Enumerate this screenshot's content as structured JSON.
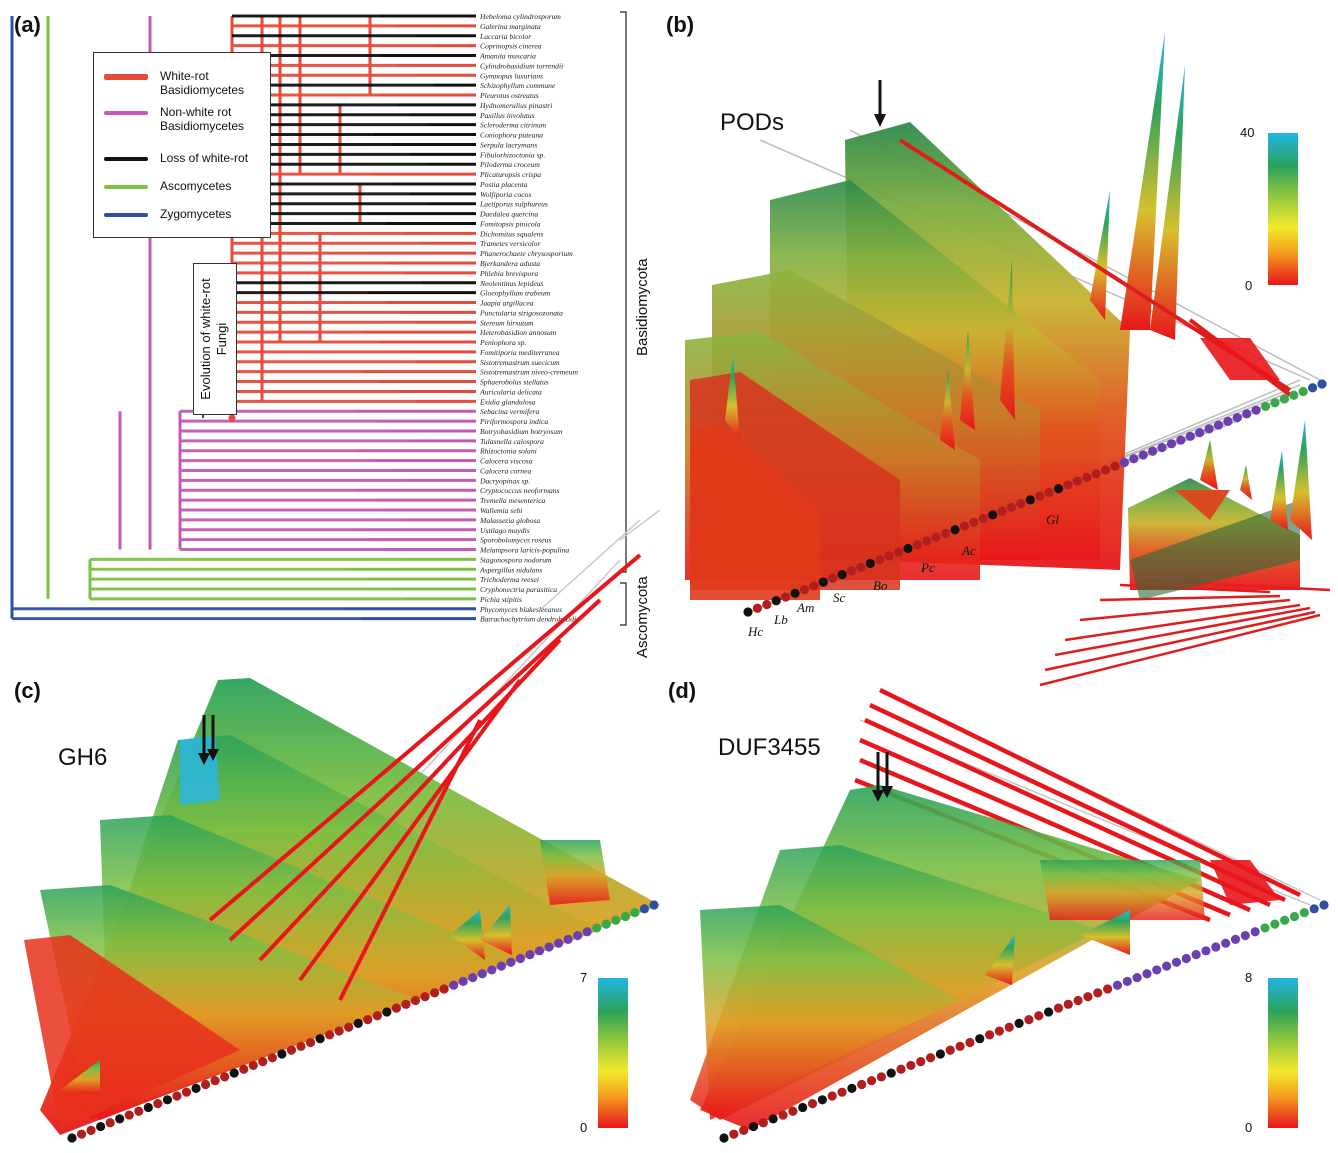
{
  "panels": {
    "a": "(a)",
    "b": "(b)",
    "c": "(c)",
    "d": "(d)"
  },
  "legend": {
    "items": [
      {
        "label": "White-rot Basidiomycetes",
        "color": "#e64a3a"
      },
      {
        "label": "Non-white rot Basidiomycetes",
        "color": "#c45ab3"
      },
      {
        "label": "Loss of white-rot",
        "color": "#111111"
      },
      {
        "label": "Ascomycetes",
        "color": "#7cc242"
      },
      {
        "label": "Zygomycetes",
        "color": "#2f4fa3"
      }
    ]
  },
  "evolution_label": "Evolution of white-rot Fungi",
  "clade_labels": {
    "basidiomycota": "Basidiomycota",
    "ascomycota": "Ascomycota"
  },
  "species": [
    "Hebeloma cylindrosporum",
    "Galerina marginata",
    "Laccaria bicolor",
    "Coprinopsis cinerea",
    "Amanita muscaria",
    "Cylindrobasidium torrendii",
    "Gymnopus luxurians",
    "Schizophyllum commune",
    "Pleurotus ostreatus",
    "Hydnomerulius pinastri",
    "Paxillus involutus",
    "Scleroderma citrinum",
    "Coniophora puteana",
    "Serpula lacrymans",
    "Fibulorhizoctonia sp.",
    "Piloderma croceum",
    "Plicaturopsis crispa",
    "Postia placenta",
    "Wolfiporia cocos",
    "Laetiporus sulphureus",
    "Daedalea quercina",
    "Fomitopsis pinicola",
    "Dichomitus squalens",
    "Trametes versicolor",
    "Phanerochaete chrysosporium",
    "Bjerkandera adusta",
    "Phlebia brevispora",
    "Neolentinus lepideus",
    "Gloeophyllum trabeum",
    "Jaapia argillacea",
    "Punctularia strigosozonata",
    "Stereum hirsutum",
    "Heterobasidion annosum",
    "Peniophora sp.",
    "Fomitiporia mediterranea",
    "Sistotremastrum suecicum",
    "Sistotremastrum niveo-cremeum",
    "Sphaerobolus stellatus",
    "Auricularia delicata",
    "Exidia glandulosa",
    "Sebacina vermifera",
    "Piriformospora indica",
    "Botryobasidium botryosum",
    "Tulasnella calospora",
    "Rhizoctonia solani",
    "Calocera viscosa",
    "Calocera cornea",
    "Dacryopinax sp.",
    "Cryptococcus neoformans",
    "Tremella mesenterica",
    "Wallemia sebi",
    "Malassezia globosa",
    "Ustilago maydis",
    "Sporobolomyces roseus",
    "Melampsora laricis-populina",
    "Stagonospora nodorum",
    "Aspergillus nidulans",
    "Trichoderma reesei",
    "Cryphonectria parasitica",
    "Pichia stipitis",
    "Phycomyces blakesleeanus",
    "Batrachochytrium dendrobatidis"
  ],
  "panel_b": {
    "title": "PODs",
    "scale_max": "40",
    "scale_min": "0",
    "taxa": [
      "Hc",
      "Lb",
      "Am",
      "Sc",
      "Bo",
      "Pc",
      "Ac",
      "Gl"
    ]
  },
  "panel_c": {
    "title": "GH6",
    "scale_max": "7",
    "scale_min": "0"
  },
  "panel_d": {
    "title": "DUF3455",
    "scale_max": "8",
    "scale_min": "0"
  },
  "colors": {
    "white_rot": "#e64a3a",
    "non_white_rot": "#c45ab3",
    "loss": "#111111",
    "ascomycetes": "#7cc242",
    "zygomycetes": "#2f4fa3"
  }
}
